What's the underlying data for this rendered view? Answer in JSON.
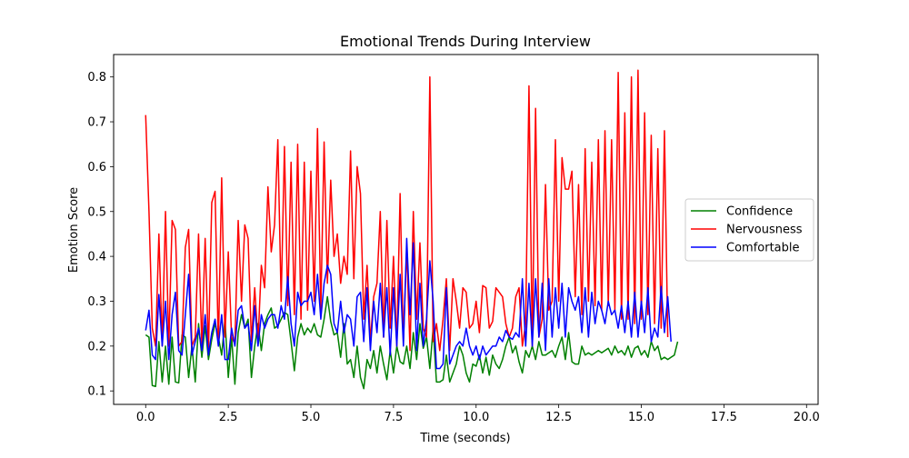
{
  "chart_data": {
    "type": "line",
    "title": "Emotional Trends During Interview",
    "xlabel": "Time (seconds)",
    "ylabel": "Emotion Score",
    "xlim": [
      -0.97,
      20.35
    ],
    "ylim": [
      0.07,
      0.85
    ],
    "xticks": [
      0.0,
      2.5,
      5.0,
      7.5,
      10.0,
      12.5,
      15.0,
      17.5,
      20.0
    ],
    "xtick_labels": [
      "0.0",
      "2.5",
      "5.0",
      "7.5",
      "10.0",
      "12.5",
      "15.0",
      "17.5",
      "20.0"
    ],
    "yticks": [
      0.1,
      0.2,
      0.3,
      0.4,
      0.5,
      0.6,
      0.7,
      0.8
    ],
    "ytick_labels": [
      "0.1",
      "0.2",
      "0.3",
      "0.4",
      "0.5",
      "0.6",
      "0.7",
      "0.8"
    ],
    "grid": false,
    "legend": {
      "position": "center-right",
      "entries": [
        "Confidence",
        "Nervousness",
        "Comfortable"
      ]
    },
    "x_start": 0.0,
    "x_step": 0.1,
    "series": [
      {
        "name": "Confidence",
        "color": "#008000",
        "values": [
          0.225,
          0.22,
          0.112,
          0.11,
          0.21,
          0.12,
          0.2,
          0.115,
          0.22,
          0.12,
          0.118,
          0.225,
          0.22,
          0.13,
          0.2,
          0.12,
          0.25,
          0.175,
          0.245,
          0.17,
          0.215,
          0.25,
          0.22,
          0.18,
          0.26,
          0.13,
          0.22,
          0.115,
          0.23,
          0.27,
          0.24,
          0.26,
          0.13,
          0.2,
          0.25,
          0.19,
          0.25,
          0.27,
          0.285,
          0.24,
          0.245,
          0.26,
          0.275,
          0.27,
          0.21,
          0.145,
          0.22,
          0.25,
          0.225,
          0.24,
          0.23,
          0.25,
          0.225,
          0.22,
          0.26,
          0.31,
          0.255,
          0.225,
          0.23,
          0.175,
          0.25,
          0.16,
          0.17,
          0.13,
          0.2,
          0.13,
          0.105,
          0.17,
          0.15,
          0.19,
          0.14,
          0.2,
          0.16,
          0.125,
          0.19,
          0.14,
          0.2,
          0.165,
          0.16,
          0.2,
          0.15,
          0.23,
          0.17,
          0.25,
          0.195,
          0.22,
          0.15,
          0.24,
          0.12,
          0.12,
          0.125,
          0.18,
          0.12,
          0.14,
          0.16,
          0.2,
          0.18,
          0.14,
          0.12,
          0.16,
          0.155,
          0.18,
          0.14,
          0.175,
          0.135,
          0.18,
          0.16,
          0.15,
          0.17,
          0.2,
          0.22,
          0.185,
          0.2,
          0.165,
          0.14,
          0.19,
          0.175,
          0.2,
          0.17,
          0.21,
          0.18,
          0.18,
          0.185,
          0.19,
          0.175,
          0.2,
          0.22,
          0.17,
          0.23,
          0.165,
          0.16,
          0.16,
          0.2,
          0.18,
          0.185,
          0.18,
          0.185,
          0.19,
          0.185,
          0.19,
          0.195,
          0.18,
          0.2,
          0.185,
          0.19,
          0.18,
          0.2,
          0.175,
          0.195,
          0.2,
          0.18,
          0.19,
          0.175,
          0.21,
          0.19,
          0.2,
          0.17,
          0.175,
          0.17,
          0.175,
          0.18,
          0.21
        ]
      },
      {
        "name": "Nervousness",
        "color": "#ff0000",
        "values": [
          0.715,
          0.5,
          0.24,
          0.2,
          0.45,
          0.2,
          0.5,
          0.2,
          0.48,
          0.46,
          0.2,
          0.21,
          0.42,
          0.46,
          0.2,
          0.22,
          0.45,
          0.2,
          0.44,
          0.19,
          0.52,
          0.545,
          0.2,
          0.575,
          0.22,
          0.41,
          0.22,
          0.205,
          0.48,
          0.3,
          0.47,
          0.44,
          0.21,
          0.33,
          0.21,
          0.38,
          0.33,
          0.555,
          0.41,
          0.47,
          0.66,
          0.3,
          0.645,
          0.29,
          0.61,
          0.27,
          0.65,
          0.26,
          0.61,
          0.28,
          0.59,
          0.3,
          0.685,
          0.28,
          0.655,
          0.34,
          0.57,
          0.4,
          0.45,
          0.34,
          0.4,
          0.36,
          0.635,
          0.35,
          0.6,
          0.54,
          0.26,
          0.38,
          0.21,
          0.31,
          0.34,
          0.5,
          0.22,
          0.48,
          0.24,
          0.4,
          0.2,
          0.54,
          0.21,
          0.42,
          0.19,
          0.5,
          0.26,
          0.43,
          0.24,
          0.22,
          0.8,
          0.21,
          0.25,
          0.19,
          0.26,
          0.35,
          0.19,
          0.35,
          0.3,
          0.24,
          0.33,
          0.32,
          0.24,
          0.25,
          0.3,
          0.23,
          0.335,
          0.33,
          0.24,
          0.255,
          0.33,
          0.32,
          0.31,
          0.25,
          0.22,
          0.24,
          0.31,
          0.33,
          0.2,
          0.25,
          0.78,
          0.2,
          0.73,
          0.22,
          0.26,
          0.56,
          0.28,
          0.3,
          0.66,
          0.3,
          0.62,
          0.55,
          0.55,
          0.59,
          0.31,
          0.56,
          0.27,
          0.64,
          0.3,
          0.61,
          0.29,
          0.66,
          0.28,
          0.68,
          0.29,
          0.66,
          0.28,
          0.81,
          0.26,
          0.72,
          0.26,
          0.8,
          0.25,
          0.815,
          0.26,
          0.72,
          0.27,
          0.67,
          0.25,
          0.64,
          0.24,
          0.68,
          0.22
        ]
      },
      {
        "name": "Comfortable",
        "color": "#0000ff",
        "values": [
          0.235,
          0.28,
          0.18,
          0.17,
          0.315,
          0.2,
          0.3,
          0.17,
          0.27,
          0.32,
          0.19,
          0.18,
          0.27,
          0.36,
          0.18,
          0.21,
          0.24,
          0.19,
          0.27,
          0.18,
          0.23,
          0.26,
          0.2,
          0.27,
          0.17,
          0.17,
          0.24,
          0.2,
          0.28,
          0.29,
          0.24,
          0.25,
          0.19,
          0.29,
          0.2,
          0.27,
          0.24,
          0.26,
          0.27,
          0.27,
          0.24,
          0.29,
          0.26,
          0.355,
          0.25,
          0.2,
          0.32,
          0.29,
          0.3,
          0.3,
          0.32,
          0.27,
          0.36,
          0.26,
          0.34,
          0.38,
          0.36,
          0.25,
          0.23,
          0.3,
          0.23,
          0.27,
          0.26,
          0.2,
          0.31,
          0.32,
          0.21,
          0.33,
          0.19,
          0.3,
          0.23,
          0.34,
          0.22,
          0.33,
          0.18,
          0.33,
          0.2,
          0.36,
          0.2,
          0.44,
          0.27,
          0.43,
          0.19,
          0.34,
          0.2,
          0.26,
          0.39,
          0.3,
          0.15,
          0.15,
          0.16,
          0.33,
          0.16,
          0.18,
          0.2,
          0.21,
          0.2,
          0.24,
          0.2,
          0.18,
          0.2,
          0.17,
          0.2,
          0.18,
          0.19,
          0.2,
          0.2,
          0.22,
          0.21,
          0.235,
          0.22,
          0.215,
          0.23,
          0.22,
          0.35,
          0.2,
          0.34,
          0.2,
          0.35,
          0.22,
          0.34,
          0.19,
          0.35,
          0.22,
          0.33,
          0.24,
          0.34,
          0.22,
          0.33,
          0.3,
          0.28,
          0.31,
          0.23,
          0.33,
          0.22,
          0.32,
          0.25,
          0.3,
          0.28,
          0.25,
          0.3,
          0.27,
          0.28,
          0.24,
          0.29,
          0.23,
          0.3,
          0.22,
          0.32,
          0.22,
          0.3,
          0.23,
          0.33,
          0.21,
          0.24,
          0.22,
          0.333,
          0.23,
          0.31,
          0.21
        ]
      }
    ]
  }
}
